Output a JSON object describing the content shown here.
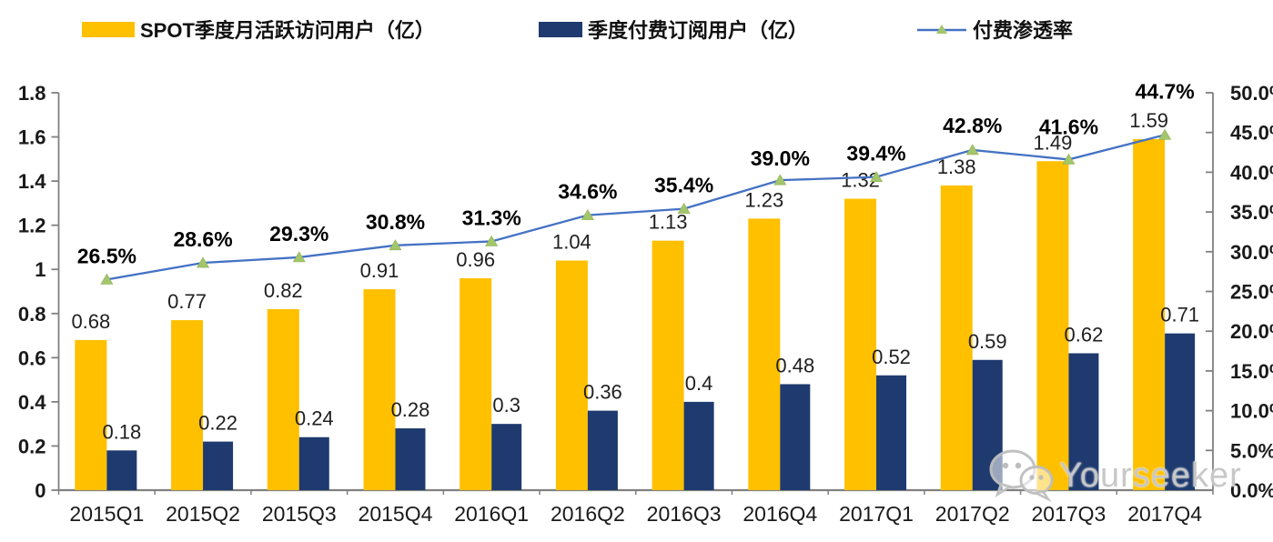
{
  "chart_data": {
    "type": "bar",
    "subtype": "grouped-bars-with-line-overlay",
    "categories": [
      "2015Q1",
      "2015Q2",
      "2015Q3",
      "2015Q4",
      "2016Q1",
      "2016Q2",
      "2016Q3",
      "2016Q4",
      "2017Q1",
      "2017Q2",
      "2017Q3",
      "2017Q4"
    ],
    "series": [
      {
        "name": "SPOT季度月活跃访问用户（亿）",
        "type": "bar",
        "axis": "left",
        "color": "#FFC000",
        "values": [
          0.68,
          0.77,
          0.82,
          0.91,
          0.96,
          1.04,
          1.13,
          1.23,
          1.32,
          1.38,
          1.49,
          1.59
        ],
        "labels": [
          "0.68",
          "0.77",
          "0.82",
          "0.91",
          "0.96",
          "1.04",
          "1.13",
          "1.23",
          "1.32",
          "1.38",
          "1.49",
          "1.59"
        ]
      },
      {
        "name": "季度付费订阅用户（亿）",
        "type": "bar",
        "axis": "left",
        "color": "#1E3A6E",
        "values": [
          0.18,
          0.22,
          0.24,
          0.28,
          0.3,
          0.36,
          0.4,
          0.48,
          0.52,
          0.59,
          0.62,
          0.71
        ],
        "labels": [
          "0.18",
          "0.22",
          "0.24",
          "0.28",
          "0.3",
          "0.36",
          "0.4",
          "0.48",
          "0.52",
          "0.59",
          "0.62",
          "0.71"
        ]
      },
      {
        "name": "付费渗透率",
        "type": "line",
        "axis": "right",
        "color": "#4472C4",
        "marker": "triangle",
        "marker_color": "#A3C56C",
        "values": [
          26.5,
          28.6,
          29.3,
          30.8,
          31.3,
          34.6,
          35.4,
          39.0,
          39.4,
          42.8,
          41.6,
          44.7
        ],
        "labels": [
          "26.5%",
          "28.6%",
          "29.3%",
          "30.8%",
          "31.3%",
          "34.6%",
          "35.4%",
          "39.0%",
          "39.4%",
          "42.8%",
          "41.6%",
          "44.7%"
        ]
      }
    ],
    "left_axis": {
      "min": 0,
      "max": 1.8,
      "ticks": [
        "0",
        "0.2",
        "0.4",
        "0.6",
        "0.8",
        "1",
        "1.2",
        "1.4",
        "1.6",
        "1.8"
      ]
    },
    "right_axis": {
      "min": 0,
      "max": 50,
      "unit": "%",
      "ticks": [
        "0.0%",
        "5.0%",
        "10.0%",
        "15.0%",
        "20.0%",
        "25.0%",
        "30.0%",
        "35.0%",
        "40.0%",
        "45.0%",
        "50.0%"
      ]
    },
    "grid": false,
    "legend_position": "top",
    "title": "",
    "xlabel": "",
    "ylabel": ""
  },
  "colors": {
    "axis_line": "#808080",
    "tick_label": "#1a1a1a",
    "value_label": "#1f1f1f",
    "pct_label": "#000000",
    "watermark": "#c6c6c6"
  },
  "watermark": {
    "text": "Yourseeker"
  }
}
